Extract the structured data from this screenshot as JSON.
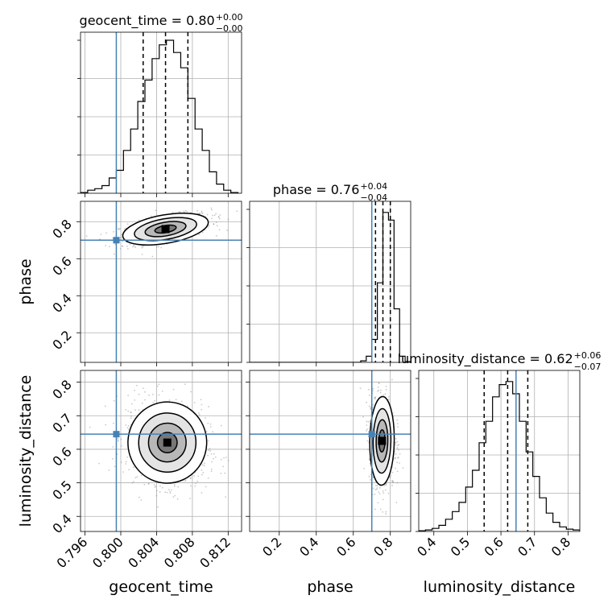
{
  "chart_data": {
    "type": "corner",
    "parameters": [
      "geocent_time",
      "phase",
      "luminosity_distance"
    ],
    "axis_labels": [
      "geocent_time",
      "phase",
      "luminosity_distance"
    ],
    "truths": {
      "geocent_time": 0.7995,
      "phase": 0.7,
      "luminosity_distance": 0.645
    },
    "colors": {
      "truth": "#4682b4",
      "contour": "#000000",
      "grid": "#b0b0b0"
    },
    "grid": true,
    "ranges": {
      "geocent_time": [
        0.7955,
        0.8135
      ],
      "phase": [
        0.04,
        0.91
      ],
      "luminosity_distance": [
        0.355,
        0.835
      ]
    },
    "ticks": {
      "geocent_time": [
        "0.796",
        "0.800",
        "0.804",
        "0.808",
        "0.812"
      ],
      "phase": [
        "0.2",
        "0.4",
        "0.6",
        "0.8"
      ],
      "luminosity_distance": [
        "0.4",
        "0.5",
        "0.6",
        "0.7",
        "0.8"
      ]
    },
    "titles": [
      {
        "param": "geocent_time",
        "text": "geocent_time = 0.80",
        "plus": "+0.00",
        "minus": "−0.00"
      },
      {
        "param": "phase",
        "text": "phase = 0.76",
        "plus": "+0.04",
        "minus": "−0.04"
      },
      {
        "param": "luminosity_distance",
        "text": "luminosity_distance = 0.62",
        "plus": "+0.06",
        "minus": "−0.07"
      }
    ],
    "quantiles": {
      "geocent_time": [
        0.8025,
        0.805,
        0.8075
      ],
      "phase": [
        0.72,
        0.76,
        0.8
      ],
      "luminosity_distance": [
        0.55,
        0.62,
        0.68
      ]
    },
    "histograms": {
      "geocent_time": {
        "bin_edges": [
          0.7955,
          0.7963,
          0.7971,
          0.7979,
          0.7987,
          0.7995,
          0.8003,
          0.8011,
          0.8019,
          0.8027,
          0.8035,
          0.8043,
          0.8051,
          0.8059,
          0.8067,
          0.8075,
          0.8083,
          0.8091,
          0.8099,
          0.8107,
          0.8115,
          0.8123,
          0.8131
        ],
        "counts": [
          0.005,
          0.02,
          0.03,
          0.05,
          0.1,
          0.15,
          0.28,
          0.42,
          0.6,
          0.74,
          0.88,
          0.97,
          1.0,
          0.92,
          0.82,
          0.62,
          0.42,
          0.28,
          0.14,
          0.06,
          0.02,
          0.005
        ]
      },
      "phase": {
        "bin_edges": [
          0.04,
          0.08,
          0.12,
          0.16,
          0.2,
          0.24,
          0.28,
          0.32,
          0.36,
          0.4,
          0.44,
          0.48,
          0.52,
          0.56,
          0.6,
          0.64,
          0.67,
          0.7,
          0.73,
          0.76,
          0.79,
          0.82,
          0.85,
          0.88,
          0.91
        ],
        "counts": [
          0,
          0,
          0,
          0,
          0,
          0,
          0,
          0,
          0,
          0,
          0,
          0,
          0,
          0,
          0,
          0.01,
          0.04,
          0.15,
          0.52,
          0.98,
          0.93,
          0.35,
          0.04,
          0.005
        ]
      },
      "luminosity_distance": {
        "bin_edges": [
          0.355,
          0.375,
          0.395,
          0.415,
          0.435,
          0.455,
          0.475,
          0.495,
          0.515,
          0.535,
          0.555,
          0.575,
          0.595,
          0.615,
          0.635,
          0.655,
          0.675,
          0.695,
          0.715,
          0.735,
          0.755,
          0.775,
          0.795,
          0.815,
          0.835
        ],
        "counts": [
          0.005,
          0.01,
          0.02,
          0.04,
          0.08,
          0.13,
          0.19,
          0.29,
          0.4,
          0.58,
          0.72,
          0.88,
          0.96,
          0.98,
          0.9,
          0.72,
          0.52,
          0.36,
          0.22,
          0.12,
          0.06,
          0.03,
          0.015,
          0.01
        ]
      }
    },
    "joint_2d": [
      {
        "x": "geocent_time",
        "y": "phase",
        "center": [
          0.805,
          0.76
        ],
        "sigma": [
          0.0022,
          0.035
        ],
        "rho": 0.55
      },
      {
        "x": "geocent_time",
        "y": "luminosity_distance",
        "center": [
          0.8052,
          0.62
        ],
        "sigma": [
          0.002,
          0.055
        ],
        "rho": -0.15
      },
      {
        "x": "phase",
        "y": "luminosity_distance",
        "center": [
          0.755,
          0.625
        ],
        "sigma": [
          0.03,
          0.06
        ],
        "rho": -0.05
      }
    ]
  }
}
